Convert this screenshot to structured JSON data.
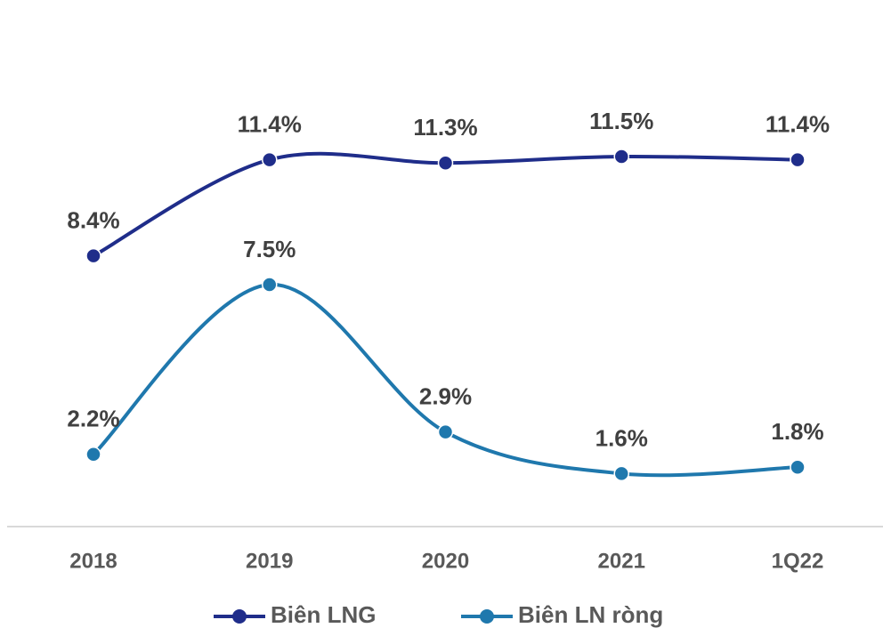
{
  "chart_data": {
    "type": "line",
    "categories": [
      "2018",
      "2019",
      "2020",
      "2021",
      "1Q22"
    ],
    "ylim": [
      0,
      16
    ],
    "series": [
      {
        "name": "Biên LNG",
        "color": "#1f2d8a",
        "values": [
          8.4,
          11.4,
          11.3,
          11.5,
          11.4
        ],
        "value_labels": [
          "8.4%",
          "11.4%",
          "11.3%",
          "11.5%",
          "11.4%"
        ]
      },
      {
        "name": "Biên LN ròng",
        "color": "#1f78ad",
        "values": [
          2.2,
          7.5,
          2.9,
          1.6,
          1.8
        ],
        "value_labels": [
          "2.2%",
          "7.5%",
          "2.9%",
          "1.6%",
          "1.8%"
        ]
      }
    ],
    "legend": "bottom"
  }
}
